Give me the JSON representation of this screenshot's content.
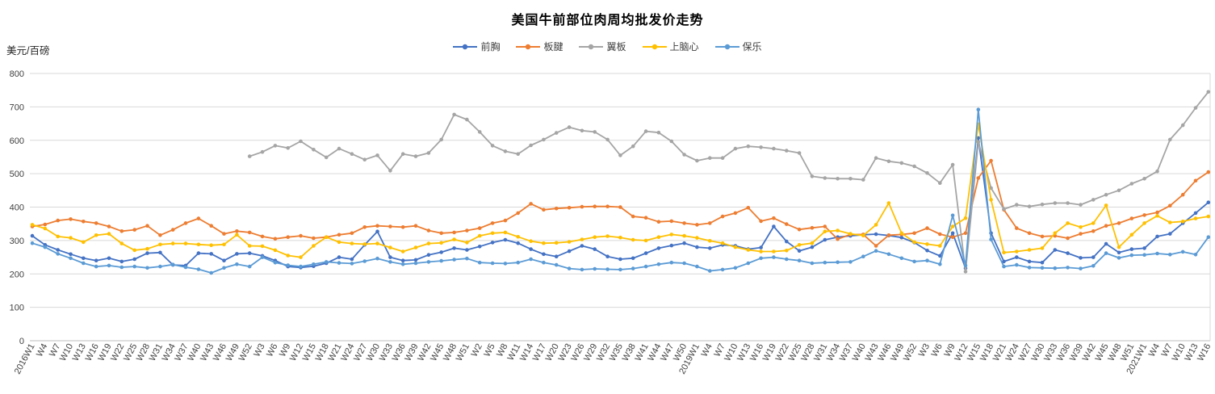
{
  "chart_data": {
    "type": "line",
    "title": "美国牛前部位肉周均批发价走势",
    "y_axis_label": "美元/百磅",
    "ylim": [
      0,
      800
    ],
    "y_tick_step": 100,
    "grid": "horizontal",
    "legend_position": "top",
    "marker": "circle",
    "categories": [
      "2016W1",
      "W4",
      "W7",
      "W10",
      "W13",
      "W16",
      "W19",
      "W22",
      "W25",
      "W28",
      "W31",
      "W34",
      "W37",
      "W40",
      "W43",
      "W46",
      "W49",
      "W52",
      "W3",
      "W6",
      "W9",
      "W12",
      "W15",
      "W18",
      "W21",
      "W24",
      "W27",
      "W30",
      "W33",
      "W36",
      "W39",
      "W42",
      "W45",
      "W48",
      "W51",
      "W2",
      "W5",
      "W8",
      "W11",
      "W14",
      "W17",
      "W20",
      "W23",
      "W26",
      "W29",
      "W32",
      "W35",
      "W38",
      "W41",
      "W44",
      "W47",
      "W50",
      "2019W1",
      "W4",
      "W7",
      "W10",
      "W13",
      "W16",
      "W19",
      "W22",
      "W25",
      "W28",
      "W31",
      "W34",
      "W37",
      "W40",
      "W43",
      "W46",
      "W49",
      "W52",
      "W3",
      "W6",
      "W9",
      "W12",
      "W15",
      "W18",
      "W21",
      "W24",
      "W27",
      "W30",
      "W33",
      "W36",
      "W39",
      "W42",
      "W45",
      "W48",
      "W51",
      "2021W1",
      "W4",
      "W7",
      "W10",
      "W13",
      "W16"
    ],
    "series": [
      {
        "name": "前胸",
        "color": "#4472C4",
        "values": [
          314,
          287,
          272,
          259,
          247,
          240,
          247,
          237,
          244,
          262,
          264,
          227,
          225,
          262,
          260,
          240,
          260,
          262,
          254,
          240,
          222,
          219,
          223,
          232,
          250,
          244,
          287,
          327,
          250,
          240,
          242,
          257,
          265,
          277,
          272,
          282,
          294,
          302,
          292,
          274,
          259,
          252,
          268,
          284,
          274,
          252,
          244,
          247,
          262,
          277,
          285,
          292,
          280,
          277,
          287,
          284,
          274,
          279,
          342,
          297,
          269,
          280,
          302,
          310,
          314,
          317,
          319,
          315,
          309,
          294,
          270,
          254,
          322,
          217,
          607,
          322,
          237,
          250,
          237,
          234,
          272,
          262,
          248,
          250,
          290,
          264,
          274,
          277,
          312,
          320,
          352,
          382,
          414
        ]
      },
      {
        "name": "板腱",
        "color": "#ED7D31",
        "values": [
          342,
          348,
          360,
          364,
          357,
          352,
          342,
          328,
          332,
          344,
          316,
          332,
          352,
          366,
          344,
          320,
          328,
          324,
          312,
          305,
          310,
          314,
          307,
          310,
          317,
          322,
          340,
          344,
          342,
          340,
          344,
          330,
          322,
          324,
          330,
          337,
          352,
          360,
          382,
          410,
          392,
          396,
          398,
          401,
          402,
          402,
          400,
          372,
          368,
          356,
          358,
          352,
          347,
          352,
          372,
          382,
          398,
          358,
          367,
          349,
          333,
          338,
          342,
          304,
          318,
          318,
          284,
          316,
          318,
          322,
          337,
          319,
          310,
          322,
          487,
          539,
          392,
          337,
          322,
          312,
          314,
          307,
          320,
          328,
          344,
          352,
          366,
          376,
          384,
          404,
          437,
          479,
          505
        ]
      },
      {
        "name": "翼板",
        "color": "#A5A5A5",
        "values": [
          null,
          null,
          null,
          null,
          null,
          null,
          null,
          null,
          null,
          null,
          null,
          null,
          null,
          null,
          null,
          null,
          null,
          552,
          565,
          584,
          577,
          597,
          572,
          549,
          575,
          559,
          542,
          555,
          509,
          559,
          552,
          562,
          602,
          677,
          662,
          625,
          584,
          567,
          559,
          585,
          602,
          622,
          639,
          629,
          625,
          602,
          555,
          582,
          627,
          623,
          597,
          557,
          539,
          547,
          547,
          575,
          582,
          579,
          575,
          569,
          562,
          492,
          487,
          485,
          485,
          482,
          547,
          537,
          532,
          522,
          502,
          472,
          527,
          207,
          595,
          457,
          394,
          407,
          402,
          408,
          412,
          412,
          407,
          422,
          437,
          450,
          470,
          485,
          507,
          602,
          645,
          697,
          745
        ]
      },
      {
        "name": "上脑心",
        "color": "#FFC000",
        "values": [
          347,
          336,
          312,
          308,
          295,
          316,
          320,
          291,
          271,
          275,
          288,
          291,
          291,
          288,
          286,
          288,
          317,
          284,
          283,
          271,
          255,
          250,
          284,
          310,
          295,
          291,
          289,
          291,
          279,
          267,
          279,
          291,
          293,
          303,
          294,
          314,
          322,
          324,
          311,
          298,
          292,
          293,
          296,
          303,
          310,
          313,
          309,
          302,
          300,
          310,
          318,
          314,
          308,
          299,
          292,
          280,
          272,
          267,
          267,
          270,
          287,
          292,
          327,
          330,
          320,
          315,
          347,
          412,
          322,
          295,
          289,
          284,
          342,
          367,
          648,
          422,
          264,
          267,
          272,
          277,
          322,
          352,
          340,
          352,
          405,
          280,
          317,
          352,
          374,
          354,
          357,
          366,
          372
        ]
      },
      {
        "name": "保乐",
        "color": "#5B9BD5",
        "values": [
          292,
          280,
          260,
          247,
          232,
          222,
          225,
          220,
          222,
          218,
          222,
          228,
          220,
          214,
          203,
          218,
          229,
          222,
          250,
          234,
          226,
          222,
          229,
          236,
          233,
          231,
          238,
          246,
          236,
          229,
          232,
          236,
          239,
          243,
          246,
          234,
          232,
          231,
          234,
          244,
          234,
          227,
          216,
          213,
          215,
          214,
          213,
          216,
          222,
          229,
          234,
          232,
          222,
          209,
          213,
          218,
          232,
          247,
          250,
          244,
          240,
          232,
          234,
          235,
          236,
          252,
          269,
          259,
          247,
          237,
          240,
          229,
          375,
          225,
          692,
          303,
          222,
          227,
          219,
          218,
          217,
          219,
          216,
          224,
          262,
          248,
          256,
          257,
          261,
          258,
          266,
          258,
          310
        ]
      }
    ]
  }
}
